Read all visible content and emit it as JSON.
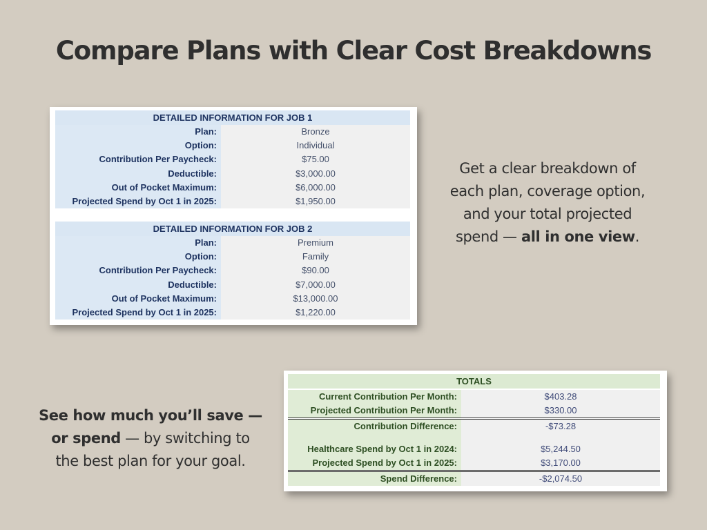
{
  "title": "Compare Plans with Clear Cost Breakdowns",
  "job1": {
    "header": "DETAILED INFORMATION FOR JOB 1",
    "rows": [
      {
        "label": "Plan:",
        "value": "Bronze"
      },
      {
        "label": "Option:",
        "value": "Individual"
      },
      {
        "label": "Contribution Per Paycheck:",
        "value": "$75.00"
      },
      {
        "label": "Deductible:",
        "value": "$3,000.00"
      },
      {
        "label": "Out of Pocket Maximum:",
        "value": "$6,000.00"
      },
      {
        "label": "Projected Spend by Oct 1 in 2025:",
        "value": "$1,950.00"
      }
    ]
  },
  "job2": {
    "header": "DETAILED INFORMATION FOR JOB 2",
    "rows": [
      {
        "label": "Plan:",
        "value": "Premium"
      },
      {
        "label": "Option:",
        "value": "Family"
      },
      {
        "label": "Contribution Per Paycheck:",
        "value": "$90.00"
      },
      {
        "label": "Deductible:",
        "value": "$7,000.00"
      },
      {
        "label": "Out of Pocket Maximum:",
        "value": "$13,000.00"
      },
      {
        "label": "Projected Spend by Oct 1 in 2025:",
        "value": "$1,220.00"
      }
    ]
  },
  "totals": {
    "header": "TOTALS",
    "rows": [
      {
        "label": "Current Contribution Per Month:",
        "value": "$403.28"
      },
      {
        "label": "Projected Contribution Per Month:",
        "value": "$330.00"
      },
      {
        "label": "Contribution Difference:",
        "value": "-$73.28"
      },
      {
        "label": "Healthcare Spend by Oct 1 in 2024:",
        "value": "$5,244.50"
      },
      {
        "label": "Projected Spend by Oct 1 in 2025:",
        "value": "$3,170.00"
      },
      {
        "label": "Spend Difference:",
        "value": "-$2,074.50"
      }
    ]
  },
  "right_text": {
    "line1": "Get a clear breakdown of",
    "line2": "each plan, coverage option,",
    "line3": "and your total projected",
    "line4_start": "spend — ",
    "line4_bold": "all in one view",
    "line4_end": "."
  },
  "left_text": {
    "line1_bold": "See how much you’ll save —",
    "line2_bold": "or spend",
    "line2_end": " — by switching to",
    "line3": "the best plan for your goal."
  },
  "colors": {
    "background": "#d3ccc1",
    "job_header": "#d9e6f3",
    "totals_header": "#dcead2"
  }
}
